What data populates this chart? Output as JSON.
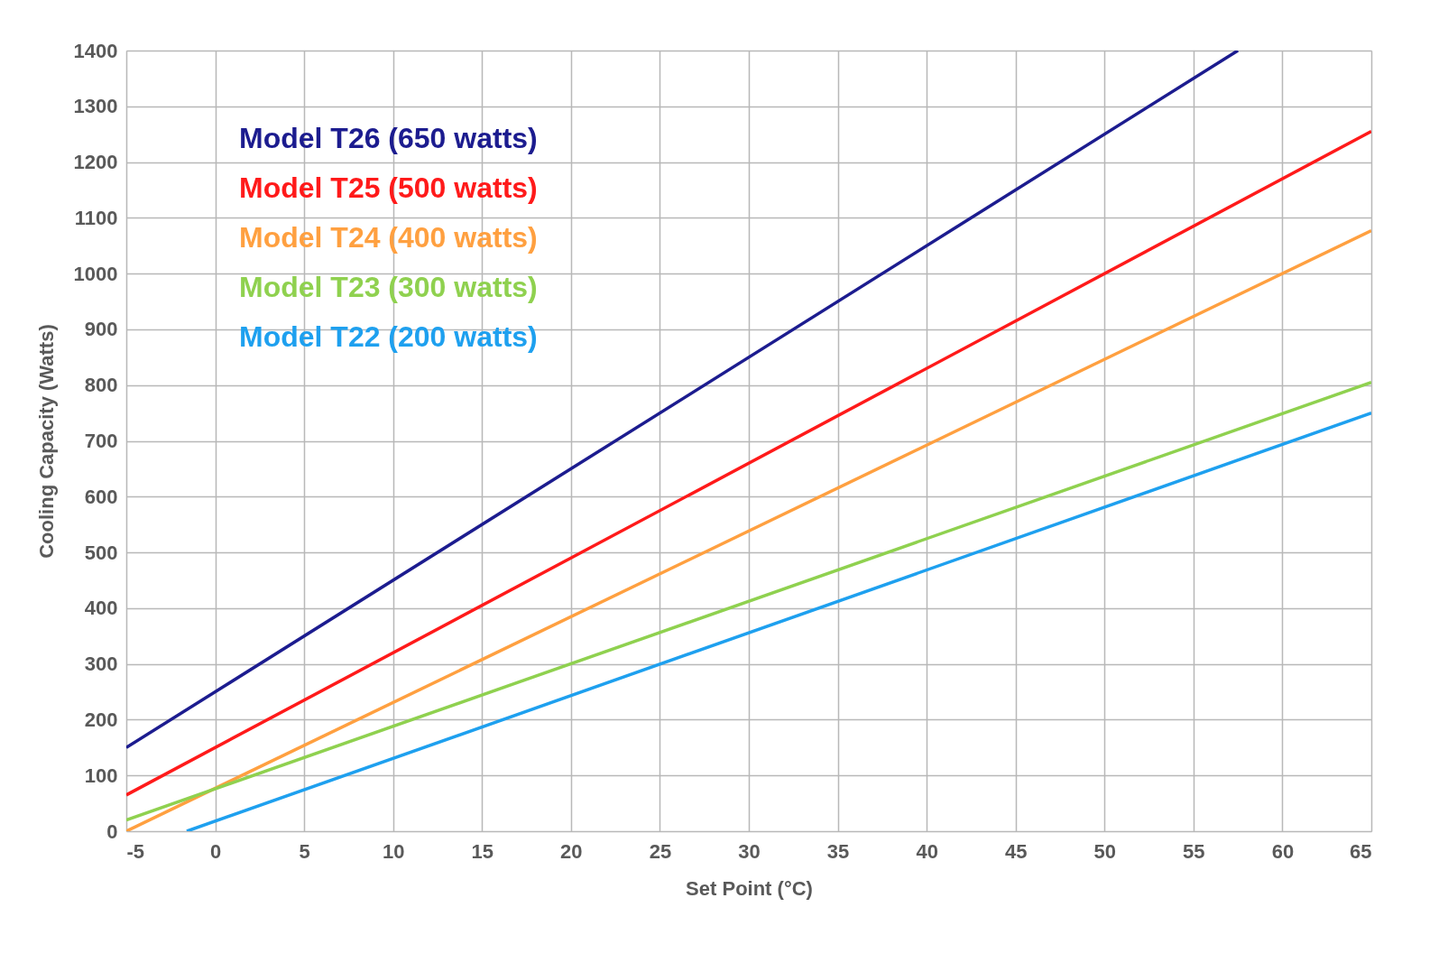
{
  "chart_data": {
    "type": "line",
    "xlabel": "Set Point (°C)",
    "ylabel": "Cooling Capacity (Watts)",
    "xlim": [
      -5,
      65
    ],
    "ylim": [
      0,
      1400
    ],
    "xticks": [
      -5,
      0,
      5,
      10,
      15,
      20,
      25,
      30,
      35,
      40,
      45,
      50,
      55,
      60,
      65
    ],
    "yticks": [
      0,
      100,
      200,
      300,
      400,
      500,
      600,
      700,
      800,
      900,
      1000,
      1100,
      1200,
      1300,
      1400
    ],
    "grid": true,
    "legend": "top left",
    "marker": "none",
    "line_style": "solid",
    "series": [
      {
        "name": "Model T26 (650 watts)",
        "color": "#1c1c8f",
        "x": [
          -5,
          57.5
        ],
        "values": [
          150,
          1400
        ]
      },
      {
        "name": "Model T25 (500 watts)",
        "color": "#ff1a1a",
        "x": [
          -5,
          65
        ],
        "values": [
          65,
          1255
        ]
      },
      {
        "name": "Model T24 (400 watts)",
        "color": "#ffa040",
        "x": [
          -5,
          65
        ],
        "values": [
          0,
          1077
        ]
      },
      {
        "name": "Model T23 (300 watts)",
        "color": "#8fd14f",
        "x": [
          -5,
          65
        ],
        "values": [
          20,
          805
        ]
      },
      {
        "name": "Model T22 (200 watts)",
        "color": "#1ea0ef",
        "x": [
          -1.6,
          65
        ],
        "values": [
          0,
          750
        ]
      }
    ]
  }
}
